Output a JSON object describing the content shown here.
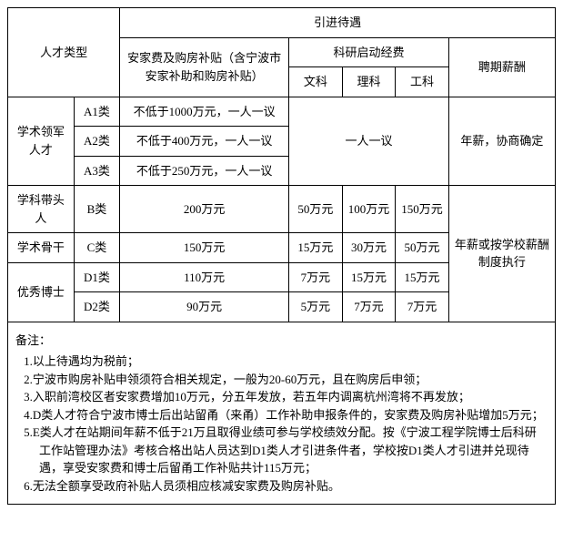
{
  "table": {
    "header": {
      "talent_type": "人才类型",
      "intro_treatment": "引进待遇",
      "allowance": "安家费及购房补贴（含宁波市安家补助和购房补贴）",
      "research_fund": "科研启动经费",
      "sci_liberal": "文科",
      "sci_science": "理科",
      "sci_engineering": "工科",
      "salary": "聘期薪酬"
    },
    "rows": {
      "leader": {
        "category": "学术领军人才",
        "a1_sub": "A1类",
        "a1_allowance": "不低于1000万元，一人一议",
        "a2_sub": "A2类",
        "a2_allowance": "不低于400万元，一人一议",
        "a3_sub": "A3类",
        "a3_allowance": "不低于250万元，一人一议",
        "research": "一人一议",
        "salary": "年薪，协商确定"
      },
      "discipline_leader": {
        "category": "学科带头人",
        "sub": "B类",
        "allowance": "200万元",
        "sci_liberal": "50万元",
        "sci_science": "100万元",
        "sci_engineering": "150万元"
      },
      "backbone": {
        "category": "学术骨干",
        "sub": "C类",
        "allowance": "150万元",
        "sci_liberal": "15万元",
        "sci_science": "30万元",
        "sci_engineering": "50万元"
      },
      "phd": {
        "category": "优秀博士",
        "d1_sub": "D1类",
        "d1_allowance": "110万元",
        "d1_liberal": "7万元",
        "d1_science": "15万元",
        "d1_engineering": "15万元",
        "d2_sub": "D2类",
        "d2_allowance": "90万元",
        "d2_liberal": "5万元",
        "d2_science": "7万元",
        "d2_engineering": "7万元"
      },
      "salary_merged": "年薪或按学校薪酬制度执行"
    },
    "notes": {
      "title": "备注：",
      "n1": "1.以上待遇均为税前；",
      "n2": "2.宁波市购房补贴申领须符合相关规定，一般为20-60万元，且在购房后申领；",
      "n3": "3.入职前湾校区者安家费增加10万元，分五年发放，若五年内调离杭州湾将不再发放；",
      "n4": "4.D类人才符合宁波市博士后出站留甬（来甬）工作补助申报条件的，安家费及购房补贴增加5万元；",
      "n5": "5.E类人才在站期间年薪不低于21万且取得业绩可参与学校绩效分配。按《宁波工程学院博士后科研工作站管理办法》考核合格出站人员达到D1类人才引进条件者，学校按D1类人才引进并兑现待遇，享受安家费和博士后留甬工作补贴共计115万元；",
      "n6": "6.无法全额享受政府补贴人员须相应核减安家费及购房补贴。"
    }
  }
}
